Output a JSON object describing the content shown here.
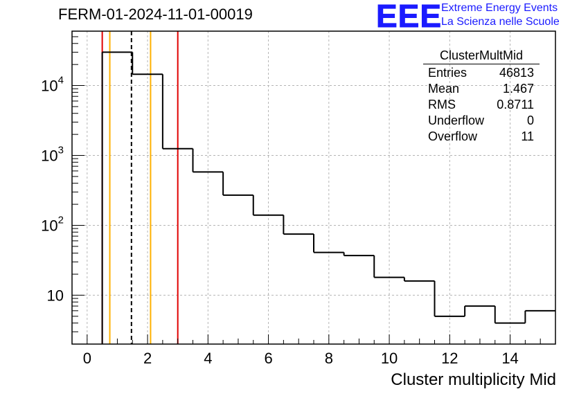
{
  "header": {
    "title": "FERM-01-2024-11-01-00019",
    "logo_mark": "EEE",
    "logo_line1": "Extreme Energy Events",
    "logo_line2": "La Scienza nelle Scuole"
  },
  "stats_box": {
    "title": "ClusterMultMid",
    "rows": [
      {
        "label": "Entries",
        "value": "46813"
      },
      {
        "label": "Mean",
        "value": "1.467"
      },
      {
        "label": "RMS",
        "value": "0.8711"
      },
      {
        "label": "Underflow",
        "value": "0"
      },
      {
        "label": "Overflow",
        "value": "11"
      }
    ]
  },
  "chart_data": {
    "type": "histogram",
    "title": "FERM-01-2024-11-01-00019",
    "xlabel": "Cluster multiplicity Mid",
    "ylabel": "",
    "xlim": [
      -0.5,
      15.5
    ],
    "ylim": [
      2,
      60000
    ],
    "yscale": "log",
    "grid": true,
    "bin_edges": [
      0.5,
      1.5,
      2.5,
      3.5,
      4.5,
      5.5,
      6.5,
      7.5,
      8.5,
      9.5,
      10.5,
      11.5,
      12.5,
      13.5,
      14.5,
      15.5
    ],
    "values": [
      30000,
      14500,
      1250,
      580,
      270,
      140,
      75,
      41,
      37,
      18,
      16,
      5,
      7,
      4,
      6
    ],
    "x_ticks": [
      0,
      2,
      4,
      6,
      8,
      10,
      12,
      14
    ],
    "y_ticks": [
      {
        "value": 10,
        "label": "10"
      },
      {
        "value": 100,
        "label": "10^2"
      },
      {
        "value": 1000,
        "label": "10^3"
      },
      {
        "value": 10000,
        "label": "10^4"
      }
    ],
    "vertical_lines": [
      {
        "x": 0.5,
        "color": "#e00000",
        "style": "solid"
      },
      {
        "x": 0.75,
        "color": "#ffb000",
        "style": "solid"
      },
      {
        "x": 1.467,
        "color": "#000000",
        "style": "dashed"
      },
      {
        "x": 2.1,
        "color": "#ffb000",
        "style": "solid"
      },
      {
        "x": 3.0,
        "color": "#e00000",
        "style": "solid"
      }
    ]
  }
}
